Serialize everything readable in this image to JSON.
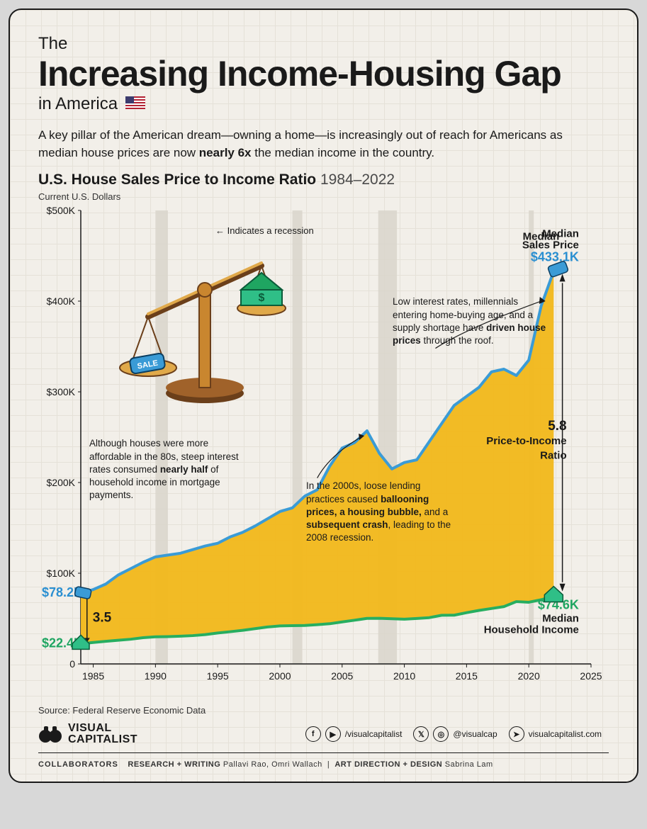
{
  "title": {
    "pre": "The",
    "main": "Increasing Income-Housing Gap",
    "sub": "in America"
  },
  "intro": {
    "text_a": "A key pillar of the American dream—owning a home—is increasingly out of reach for Americans as median house prices are now ",
    "bold": "nearly 6x",
    "text_b": " the median income in the country."
  },
  "chart": {
    "title": "U.S. House Sales Price to Income Ratio",
    "years_span": "1984–2022",
    "y_axis_label": "Current U.S. Dollars",
    "type": "area",
    "background_color": "#f2efe9",
    "grid_color": "#e5e1d8",
    "area_color": "#f2b91e",
    "price_line_color": "#3a9bd6",
    "income_line_color": "#27ae60",
    "line_width": 4,
    "xlim": [
      1984,
      2025
    ],
    "ylim": [
      0,
      500
    ],
    "yticks": [
      0,
      100,
      200,
      300,
      400,
      500
    ],
    "ytick_labels": [
      "0",
      "$100K",
      "$200K",
      "$300K",
      "$400K",
      "$500K"
    ],
    "xticks": [
      1985,
      1990,
      1995,
      2000,
      2005,
      2010,
      2015,
      2020,
      2025
    ],
    "xtick_labels": [
      "1985",
      "1990",
      "1995",
      "2000",
      "2005",
      "2010",
      "2015",
      "2020",
      "2025"
    ],
    "recession_band_color": "#d9d5cb",
    "recessions": [
      [
        1990,
        1991
      ],
      [
        2001,
        2001.8
      ],
      [
        2007.9,
        2009.4
      ],
      [
        2020,
        2020.4
      ]
    ],
    "recession_label": "← Indicates a recession",
    "price_series": {
      "label": "Median Sales Price",
      "end_value": "$433.1K",
      "start_value": "$78.2K",
      "data": [
        [
          1984,
          78.2
        ],
        [
          1985,
          82
        ],
        [
          1986,
          88
        ],
        [
          1987,
          98
        ],
        [
          1988,
          105
        ],
        [
          1989,
          112
        ],
        [
          1990,
          118
        ],
        [
          1991,
          120
        ],
        [
          1992,
          122
        ],
        [
          1993,
          126
        ],
        [
          1994,
          130
        ],
        [
          1995,
          133
        ],
        [
          1996,
          140
        ],
        [
          1997,
          145
        ],
        [
          1998,
          152
        ],
        [
          1999,
          160
        ],
        [
          2000,
          168
        ],
        [
          2001,
          172
        ],
        [
          2002,
          185
        ],
        [
          2003,
          192
        ],
        [
          2004,
          218
        ],
        [
          2005,
          238
        ],
        [
          2006,
          244
        ],
        [
          2007,
          257
        ],
        [
          2008,
          232
        ],
        [
          2009,
          215
        ],
        [
          2010,
          222
        ],
        [
          2011,
          225
        ],
        [
          2012,
          245
        ],
        [
          2013,
          265
        ],
        [
          2014,
          285
        ],
        [
          2015,
          295
        ],
        [
          2016,
          305
        ],
        [
          2017,
          322
        ],
        [
          2018,
          325
        ],
        [
          2019,
          318
        ],
        [
          2020,
          335
        ],
        [
          2021,
          395
        ],
        [
          2022,
          433.1
        ]
      ]
    },
    "income_series": {
      "label": "Median Household Income",
      "end_value": "$74.6K",
      "start_value": "$22.4K",
      "data": [
        [
          1984,
          22.4
        ],
        [
          1985,
          23.6
        ],
        [
          1986,
          24.9
        ],
        [
          1987,
          26.1
        ],
        [
          1988,
          27.2
        ],
        [
          1989,
          28.9
        ],
        [
          1990,
          29.9
        ],
        [
          1991,
          30.1
        ],
        [
          1992,
          30.6
        ],
        [
          1993,
          31.2
        ],
        [
          1994,
          32.3
        ],
        [
          1995,
          34.1
        ],
        [
          1996,
          35.5
        ],
        [
          1997,
          37.0
        ],
        [
          1998,
          38.9
        ],
        [
          1999,
          40.7
        ],
        [
          2000,
          41.9
        ],
        [
          2001,
          42.2
        ],
        [
          2002,
          42.4
        ],
        [
          2003,
          43.3
        ],
        [
          2004,
          44.3
        ],
        [
          2005,
          46.3
        ],
        [
          2006,
          48.2
        ],
        [
          2007,
          50.2
        ],
        [
          2008,
          50.3
        ],
        [
          2009,
          49.8
        ],
        [
          2010,
          49.3
        ],
        [
          2011,
          50.1
        ],
        [
          2012,
          51.0
        ],
        [
          2013,
          53.6
        ],
        [
          2014,
          53.7
        ],
        [
          2015,
          56.5
        ],
        [
          2016,
          59.0
        ],
        [
          2017,
          61.1
        ],
        [
          2018,
          63.2
        ],
        [
          2019,
          68.7
        ],
        [
          2020,
          68.0
        ],
        [
          2021,
          70.8
        ],
        [
          2022,
          74.6
        ]
      ]
    },
    "ratio_start": "3.5",
    "ratio_end": "5.8",
    "ratio_label": "Price-to-Income Ratio",
    "annotations": {
      "a80s": {
        "text_a": "Although houses were more affordable in the 80s, steep interest rates consumed ",
        "b": "nearly half",
        "text_b": " of household income in mortgage payments."
      },
      "a00s": {
        "text_a": "In the 2000s, loose lending practices caused ",
        "b1": "ballooning prices, a housing bubble,",
        "text_b": " and a ",
        "b2": "subsequent crash",
        "text_c": ", leading to the 2008 recession."
      },
      "aLow": {
        "text_a": "Low interest rates, millennials entering home-buying age, and a supply shortage have ",
        "b": "driven house prices",
        "text_b": " through the roof."
      }
    }
  },
  "source": "Source: Federal Reserve Economic Data",
  "brand": "VISUAL CAPITALIST",
  "socials": {
    "h1": "/visualcapitalist",
    "h2": "@visualcap",
    "h3": "visualcapitalist.com"
  },
  "collab": {
    "label": "COLLABORATORS",
    "r1": "RESEARCH + WRITING",
    "n1": "Pallavi Rao, Omri Wallach",
    "r2": "ART DIRECTION + DESIGN",
    "n2": "Sabrina Lam"
  }
}
